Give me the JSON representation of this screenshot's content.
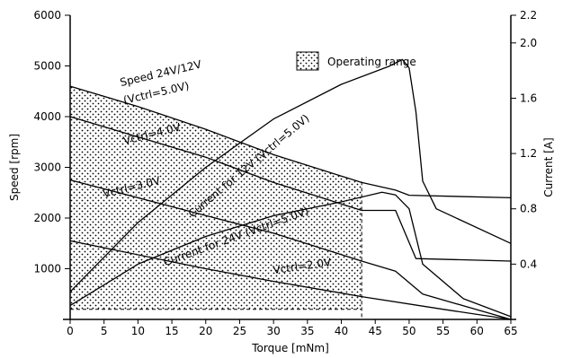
{
  "chart_data": {
    "type": "line",
    "xlabel": "Torque [mNm]",
    "ylabel_left": "Speed [rpm]",
    "ylabel_right": "Current [A]",
    "xlim": [
      0,
      65
    ],
    "ylim_left": [
      0,
      6000
    ],
    "ylim_right": [
      0,
      2.2
    ],
    "x_ticks": [
      "0",
      "5",
      "10",
      "15",
      "20",
      "25",
      "30",
      "35",
      "40",
      "45",
      "50",
      "55",
      "60",
      "65"
    ],
    "y_left_ticks": [
      "1000",
      "2000",
      "3000",
      "4000",
      "5000",
      "6000"
    ],
    "y_right_ticks": [
      "0.4",
      "0.8",
      "1.2",
      "1.6",
      "2.0",
      "2.2"
    ],
    "legend": "Operating range",
    "operating_range": {
      "x": [
        0,
        43
      ],
      "speed": [
        200,
        4600
      ]
    },
    "series": [
      {
        "name": "Speed 24V/12V (Vctrl=5.0V)",
        "axis": "left",
        "points": [
          [
            0,
            4600
          ],
          [
            10,
            4200
          ],
          [
            20,
            3750
          ],
          [
            30,
            3250
          ],
          [
            43,
            2700
          ],
          [
            48,
            2550
          ],
          [
            50,
            2450
          ],
          [
            65,
            2400
          ]
        ]
      },
      {
        "name": "Vctrl=4.0V",
        "axis": "left",
        "points": [
          [
            0,
            4000
          ],
          [
            20,
            3200
          ],
          [
            30,
            2700
          ],
          [
            43,
            2150
          ],
          [
            48,
            2150
          ],
          [
            51,
            1200
          ],
          [
            65,
            1150
          ]
        ]
      },
      {
        "name": "Vctrl=3.0V",
        "axis": "left",
        "points": [
          [
            0,
            2750
          ],
          [
            20,
            2050
          ],
          [
            30,
            1700
          ],
          [
            43,
            1150
          ],
          [
            48,
            950
          ],
          [
            52,
            500
          ],
          [
            65,
            0
          ]
        ]
      },
      {
        "name": "Vctrl=2.0V",
        "axis": "left",
        "points": [
          [
            0,
            1550
          ],
          [
            20,
            1000
          ],
          [
            30,
            750
          ],
          [
            43,
            450
          ],
          [
            55,
            200
          ],
          [
            65,
            0
          ]
        ]
      },
      {
        "name": "Current for 12V (Vctrl=5.0V)",
        "axis": "right",
        "points": [
          [
            0,
            0.2
          ],
          [
            10,
            0.7
          ],
          [
            20,
            1.1
          ],
          [
            30,
            1.45
          ],
          [
            40,
            1.7
          ],
          [
            47,
            1.83
          ],
          [
            49,
            1.88
          ],
          [
            50,
            1.82
          ],
          [
            51,
            1.5
          ],
          [
            52,
            1.0
          ],
          [
            54,
            0.8
          ],
          [
            65,
            0.55
          ]
        ]
      },
      {
        "name": "Current for 24V (Vctrl=5.0V)",
        "axis": "right",
        "points": [
          [
            0,
            0.1
          ],
          [
            10,
            0.4
          ],
          [
            20,
            0.6
          ],
          [
            30,
            0.75
          ],
          [
            40,
            0.85
          ],
          [
            46,
            0.92
          ],
          [
            48,
            0.9
          ],
          [
            50,
            0.8
          ],
          [
            52,
            0.4
          ],
          [
            58,
            0.15
          ],
          [
            65,
            0.02
          ]
        ]
      }
    ],
    "annotations": [
      {
        "text": "Speed 24V/12V",
        "x": 7.5,
        "y": 4600
      },
      {
        "text": "(Vctrl=5.0V)",
        "x": 8,
        "y": 4250
      },
      {
        "text": "Vctrl=4.0V",
        "x": 8,
        "y": 3450
      },
      {
        "text": "Vctrl=3.0V",
        "x": 5,
        "y": 2400
      },
      {
        "text": "Vctrl=2.0V",
        "x": 30,
        "y": 900
      },
      {
        "text": "Current for 12V (Vctrl=5.0V)",
        "x": 18,
        "y": 2000
      },
      {
        "text": "Current for 24V (Vctrl=5.0V)",
        "x": 14,
        "y": 1050
      }
    ]
  }
}
